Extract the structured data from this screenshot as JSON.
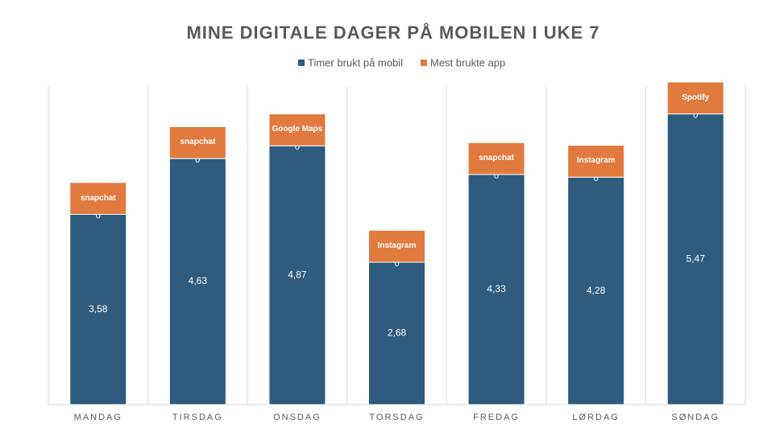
{
  "chart_data": {
    "type": "bar",
    "stacked": true,
    "title": "MINE DIGITALE DAGER PÅ MOBILEN I UKE 7",
    "categories": [
      "MANDAG",
      "TIRSDAG",
      "ONSDAG",
      "TORSDAG",
      "FREDAG",
      "LØRDAG",
      "SØNDAG"
    ],
    "series": [
      {
        "name": "Timer brukt på mobil",
        "color": "#2e5b7e",
        "values": [
          3.58,
          4.63,
          4.87,
          2.68,
          4.33,
          4.28,
          5.47
        ],
        "value_labels": [
          "3,58",
          "4,63",
          "4,87",
          "2,68",
          "4,33",
          "4,28",
          "5,47"
        ]
      },
      {
        "color": "#ffffff",
        "values": [
          0,
          0,
          0,
          0,
          0,
          0,
          0
        ]
      },
      {
        "name": "Mest brukte app",
        "color": "#e07a3e",
        "values": [
          0.6,
          0.6,
          0.6,
          0.6,
          0.6,
          0.6,
          0.6
        ],
        "value_labels": [
          "snapchat",
          "snapchat",
          "Google Maps",
          "Instagram",
          "snapchat",
          "Instagram",
          "Spotify"
        ]
      }
    ],
    "ylim": [
      0,
      6.1
    ]
  }
}
